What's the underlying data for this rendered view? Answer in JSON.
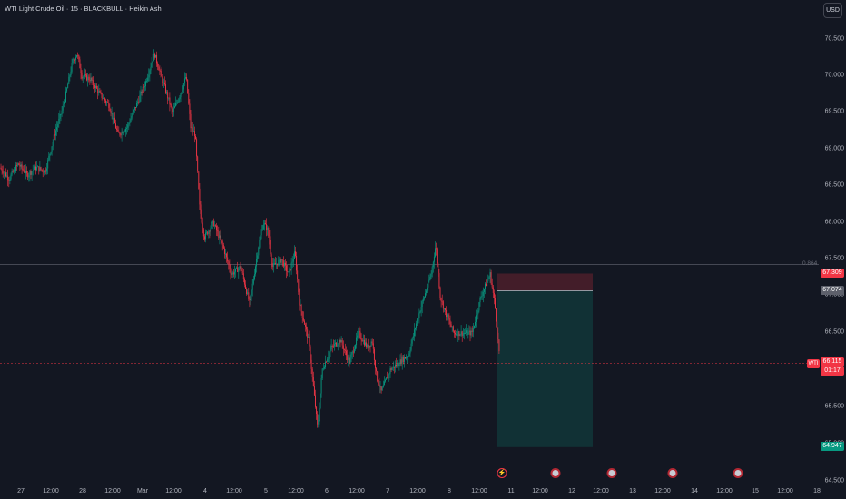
{
  "header": {
    "title": "WTI Light Crude Oil · 15 · BLACKBULL · Heikin Ashi",
    "currency_button": "USD"
  },
  "price_axis": {
    "ticks": [
      "70.500",
      "70.000",
      "69.500",
      "69.000",
      "68.500",
      "68.000",
      "67.500",
      "67.000",
      "66.500",
      "66.000",
      "65.500",
      "65.000",
      "64.500"
    ],
    "labels": {
      "stop_price": "67.309",
      "entry_price": "67.074",
      "current_price": "66.115",
      "countdown": "01:17",
      "target_price": "64.947"
    }
  },
  "overlays": {
    "fib_level": "0.864",
    "symbol_tag": "WTI"
  },
  "time_axis": {
    "ticks": [
      "27",
      "12:00",
      "28",
      "12:00",
      "Mar",
      "12:00",
      "4",
      "12:00",
      "5",
      "12:00",
      "6",
      "12:00",
      "7",
      "12:00",
      "8",
      "12:00",
      "11",
      "12:00",
      "12",
      "12:00",
      "13",
      "12:00",
      "14",
      "12:00",
      "15",
      "12:00",
      "18"
    ]
  },
  "events": [
    {
      "type": "bolt-icon",
      "label": "⚡"
    },
    {
      "type": "us-flag-icon"
    },
    {
      "type": "us-flag-icon"
    },
    {
      "type": "us-flag-icon"
    },
    {
      "type": "us-flag-icon"
    }
  ],
  "colors": {
    "background": "#131722",
    "up_candle": "#089981",
    "down_candle": "#f23645",
    "stop_zone": "#f23645",
    "target_zone": "#089981",
    "fib_line": "#787b86",
    "price_line": "#f23645"
  },
  "chart_data": {
    "type": "candlestick",
    "y_range": [
      64.5,
      70.75
    ],
    "keypoints": [
      [
        0,
        68.75
      ],
      [
        10,
        68.6
      ],
      [
        20,
        68.8
      ],
      [
        30,
        68.65
      ],
      [
        40,
        68.75
      ],
      [
        50,
        68.7
      ],
      [
        60,
        69.2
      ],
      [
        70,
        69.6
      ],
      [
        80,
        70.2
      ],
      [
        85,
        70.3
      ],
      [
        90,
        70.0
      ],
      [
        100,
        69.95
      ],
      [
        110,
        69.75
      ],
      [
        120,
        69.6
      ],
      [
        130,
        69.2
      ],
      [
        140,
        69.3
      ],
      [
        150,
        69.6
      ],
      [
        160,
        69.9
      ],
      [
        170,
        70.3
      ],
      [
        180,
        69.9
      ],
      [
        190,
        69.5
      ],
      [
        200,
        69.8
      ],
      [
        205,
        70.0
      ],
      [
        210,
        69.3
      ],
      [
        215,
        69.2
      ],
      [
        220,
        68.2
      ],
      [
        225,
        67.8
      ],
      [
        235,
        68.0
      ],
      [
        245,
        67.7
      ],
      [
        255,
        67.3
      ],
      [
        265,
        67.4
      ],
      [
        275,
        66.9
      ],
      [
        285,
        67.7
      ],
      [
        290,
        68.0
      ],
      [
        295,
        67.9
      ],
      [
        300,
        67.4
      ],
      [
        310,
        67.5
      ],
      [
        318,
        67.3
      ],
      [
        325,
        67.6
      ],
      [
        330,
        66.9
      ],
      [
        340,
        66.4
      ],
      [
        345,
        65.8
      ],
      [
        350,
        65.2
      ],
      [
        355,
        66.0
      ],
      [
        365,
        66.3
      ],
      [
        375,
        66.4
      ],
      [
        385,
        66.1
      ],
      [
        395,
        66.5
      ],
      [
        405,
        66.3
      ],
      [
        410,
        66.4
      ],
      [
        415,
        65.9
      ],
      [
        420,
        65.7
      ],
      [
        430,
        66.0
      ],
      [
        440,
        66.1
      ],
      [
        450,
        66.2
      ],
      [
        460,
        66.7
      ],
      [
        470,
        67.1
      ],
      [
        475,
        67.3
      ],
      [
        480,
        67.7
      ],
      [
        485,
        67.0
      ],
      [
        490,
        66.8
      ],
      [
        500,
        66.5
      ],
      [
        510,
        66.5
      ],
      [
        520,
        66.5
      ],
      [
        530,
        67.0
      ],
      [
        540,
        67.3
      ],
      [
        545,
        66.9
      ],
      [
        548,
        66.5
      ],
      [
        551,
        66.1
      ]
    ],
    "position": {
      "entry": 67.074,
      "stop": 67.309,
      "target": 64.947
    }
  }
}
